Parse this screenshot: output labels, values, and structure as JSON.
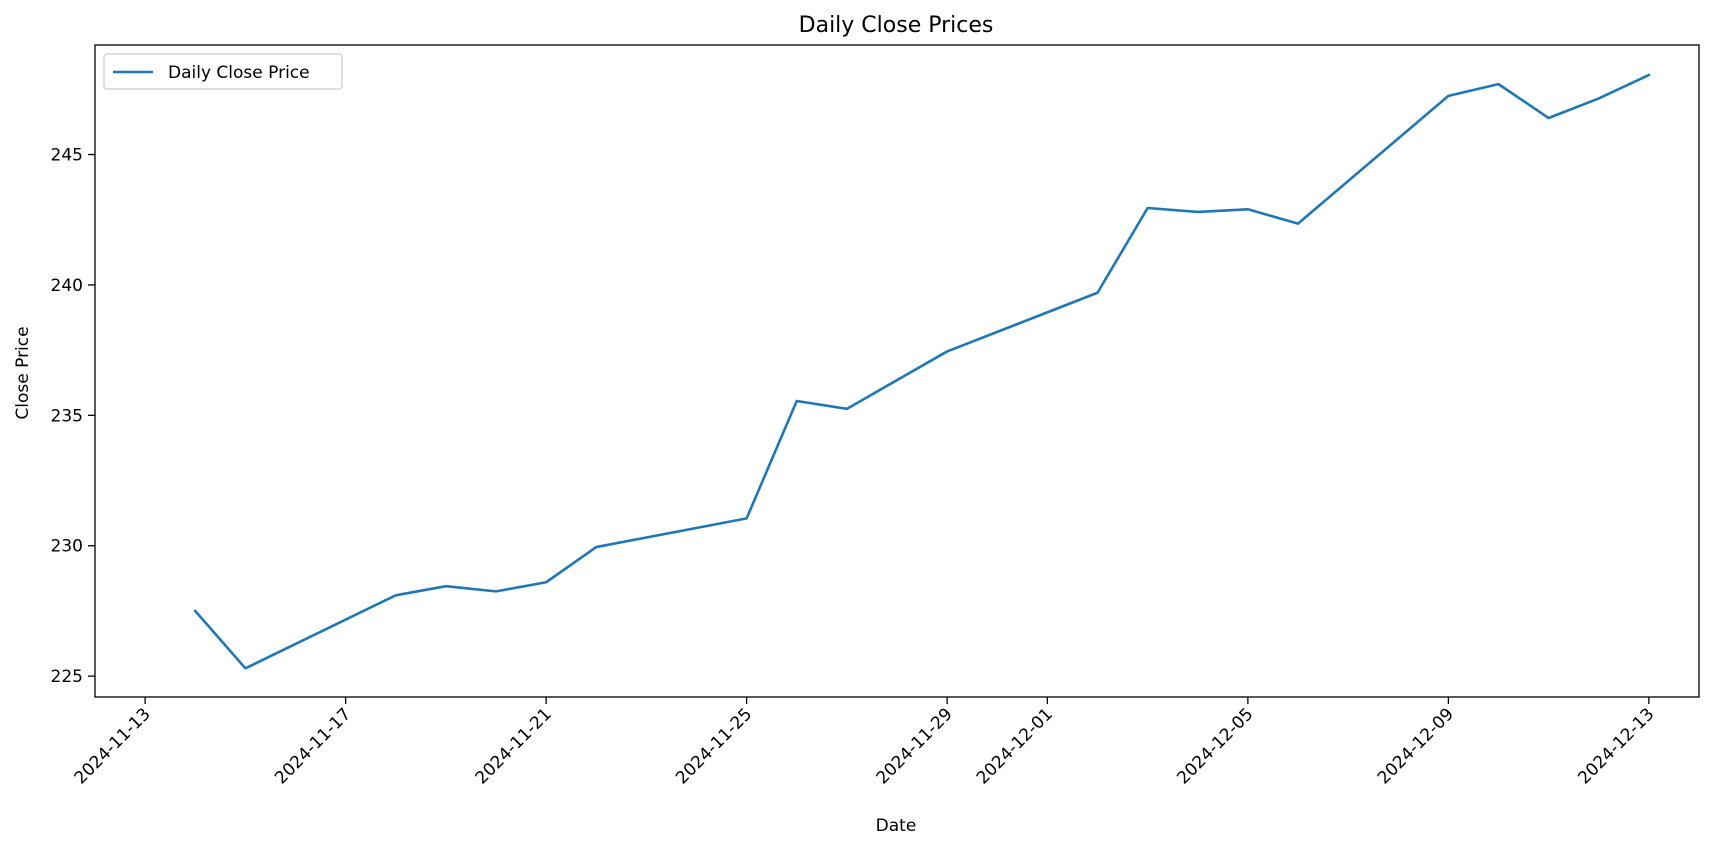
{
  "chart_data": {
    "type": "line",
    "title": "Daily Close Prices",
    "xlabel": "Date",
    "ylabel": "Close Price",
    "legend_position": "top-left",
    "grid": false,
    "xlim": [
      "2024-11-12",
      "2024-12-14"
    ],
    "ylim": [
      224.2,
      249.2
    ],
    "x_ticks": [
      "2024-11-13",
      "2024-11-17",
      "2024-11-21",
      "2024-11-25",
      "2024-11-29",
      "2024-12-01",
      "2024-12-05",
      "2024-12-09",
      "2024-12-13"
    ],
    "y_ticks": [
      225,
      230,
      235,
      240,
      245
    ],
    "series": [
      {
        "name": "Daily Close Price",
        "color": "#1f77b4",
        "points": [
          {
            "x": "2024-11-14",
            "y": 227.5
          },
          {
            "x": "2024-11-15",
            "y": 225.3
          },
          {
            "x": "2024-11-18",
            "y": 228.1
          },
          {
            "x": "2024-11-19",
            "y": 228.45
          },
          {
            "x": "2024-11-20",
            "y": 228.25
          },
          {
            "x": "2024-11-21",
            "y": 228.6
          },
          {
            "x": "2024-11-22",
            "y": 229.95
          },
          {
            "x": "2024-11-25",
            "y": 231.05
          },
          {
            "x": "2024-11-26",
            "y": 235.55
          },
          {
            "x": "2024-11-27",
            "y": 235.25
          },
          {
            "x": "2024-11-29",
            "y": 237.45
          },
          {
            "x": "2024-12-02",
            "y": 239.7
          },
          {
            "x": "2024-12-03",
            "y": 242.95
          },
          {
            "x": "2024-12-04",
            "y": 242.8
          },
          {
            "x": "2024-12-05",
            "y": 242.9
          },
          {
            "x": "2024-12-06",
            "y": 242.35
          },
          {
            "x": "2024-12-09",
            "y": 247.25
          },
          {
            "x": "2024-12-10",
            "y": 247.7
          },
          {
            "x": "2024-12-11",
            "y": 246.4
          },
          {
            "x": "2024-12-12",
            "y": 247.15
          },
          {
            "x": "2024-12-13",
            "y": 248.05
          }
        ]
      }
    ]
  }
}
